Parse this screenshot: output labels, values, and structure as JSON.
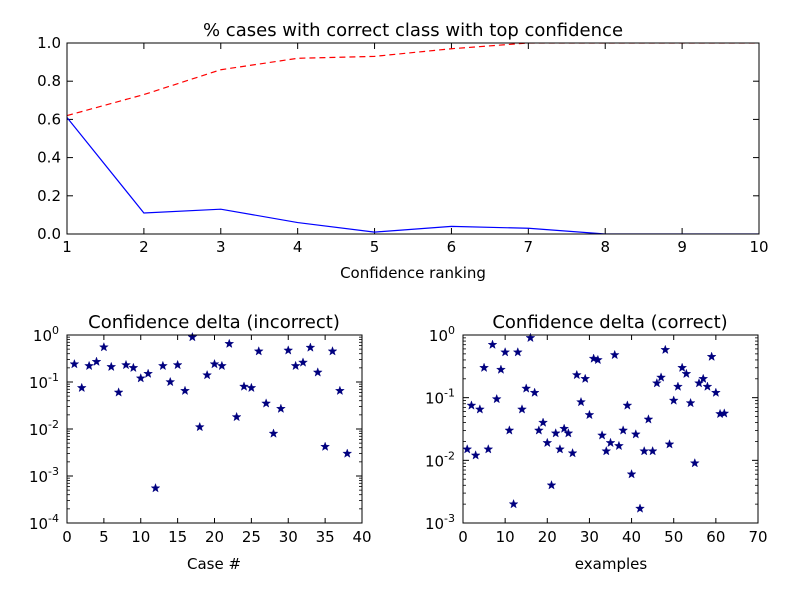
{
  "chart_data": [
    {
      "type": "line",
      "title": "% cases with correct class with top confidence",
      "xlabel": "Confidence ranking",
      "ylabel": "",
      "xlim": [
        1,
        10
      ],
      "ylim": [
        0.0,
        1.0
      ],
      "xticks": [
        "1",
        "2",
        "3",
        "4",
        "5",
        "6",
        "7",
        "8",
        "9",
        "10"
      ],
      "yticks": [
        "0.0",
        "0.2",
        "0.4",
        "0.6",
        "0.8",
        "1.0"
      ],
      "grid": false,
      "x": [
        1,
        2,
        3,
        4,
        5,
        6,
        7,
        8,
        9,
        10
      ],
      "series": [
        {
          "style": "solid",
          "color": "#0000ff",
          "values": [
            0.61,
            0.11,
            0.13,
            0.06,
            0.01,
            0.04,
            0.03,
            0.0,
            0.0,
            0.0
          ]
        },
        {
          "style": "dashed",
          "color": "#ff0000",
          "values": [
            0.62,
            0.73,
            0.86,
            0.92,
            0.93,
            0.97,
            1.0,
            1.0,
            1.0,
            1.0
          ]
        }
      ]
    },
    {
      "type": "scatter",
      "title": "Confidence delta (incorrect)",
      "xlabel": "Case #",
      "ylabel": "",
      "xlim": [
        0,
        40
      ],
      "ylim": [
        0.0001,
        1
      ],
      "yscale": "log",
      "xticks": [
        "0",
        "5",
        "10",
        "15",
        "20",
        "25",
        "30",
        "35",
        "40"
      ],
      "ytick_labels": [
        {
          "base": "10",
          "exp": "-4"
        },
        {
          "base": "10",
          "exp": "-3"
        },
        {
          "base": "10",
          "exp": "-2"
        },
        {
          "base": "10",
          "exp": "-1"
        },
        {
          "base": "10",
          "exp": "0"
        }
      ],
      "marker": "star",
      "color": "#00007f",
      "x": [
        1,
        2,
        3,
        4,
        5,
        6,
        7,
        8,
        9,
        10,
        11,
        12,
        13,
        14,
        15,
        16,
        17,
        18,
        19,
        20,
        21,
        22,
        23,
        24,
        25,
        26,
        27,
        28,
        29,
        30,
        31,
        32,
        33,
        34,
        35,
        36,
        37,
        38
      ],
      "y": [
        0.24,
        0.075,
        0.22,
        0.27,
        0.55,
        0.21,
        0.06,
        0.23,
        0.2,
        0.12,
        0.15,
        0.00055,
        0.22,
        0.1,
        0.23,
        0.065,
        0.9,
        0.011,
        0.14,
        0.24,
        0.22,
        0.65,
        0.018,
        0.08,
        0.075,
        0.45,
        0.035,
        0.008,
        0.027,
        0.47,
        0.22,
        0.26,
        0.54,
        0.16,
        0.0042,
        0.45,
        0.065,
        0.003
      ]
    },
    {
      "type": "scatter",
      "title": "Confidence delta (correct)",
      "xlabel": "examples",
      "ylabel": "",
      "xlim": [
        0,
        70
      ],
      "ylim": [
        0.001,
        1
      ],
      "yscale": "log",
      "xticks": [
        "0",
        "10",
        "20",
        "30",
        "40",
        "50",
        "60",
        "70"
      ],
      "ytick_labels": [
        {
          "base": "10",
          "exp": "-3"
        },
        {
          "base": "10",
          "exp": "-2"
        },
        {
          "base": "10",
          "exp": "-1"
        },
        {
          "base": "10",
          "exp": "0"
        }
      ],
      "marker": "star",
      "color": "#00007f",
      "x": [
        1,
        2,
        3,
        4,
        5,
        6,
        7,
        8,
        9,
        10,
        11,
        12,
        13,
        14,
        15,
        16,
        17,
        18,
        19,
        20,
        21,
        22,
        23,
        24,
        25,
        26,
        27,
        28,
        29,
        30,
        31,
        32,
        33,
        34,
        35,
        36,
        37,
        38,
        39,
        40,
        41,
        42,
        43,
        44,
        45,
        46,
        47,
        48,
        49,
        50,
        51,
        52,
        53,
        54,
        55,
        56,
        57,
        58,
        59,
        60,
        61,
        62
      ],
      "y": [
        0.015,
        0.075,
        0.012,
        0.065,
        0.3,
        0.015,
        0.7,
        0.095,
        0.28,
        0.53,
        0.03,
        0.002,
        0.53,
        0.065,
        0.14,
        0.9,
        0.12,
        0.03,
        0.04,
        0.019,
        0.004,
        0.027,
        0.015,
        0.032,
        0.027,
        0.013,
        0.23,
        0.085,
        0.2,
        0.053,
        0.42,
        0.4,
        0.025,
        0.014,
        0.019,
        0.48,
        0.017,
        0.03,
        0.075,
        0.006,
        0.026,
        0.0017,
        0.014,
        0.045,
        0.014,
        0.17,
        0.21,
        0.58,
        0.018,
        0.09,
        0.15,
        0.3,
        0.24,
        0.082,
        0.009,
        0.17,
        0.2,
        0.15,
        0.45,
        0.12,
        0.055,
        0.056
      ]
    }
  ]
}
